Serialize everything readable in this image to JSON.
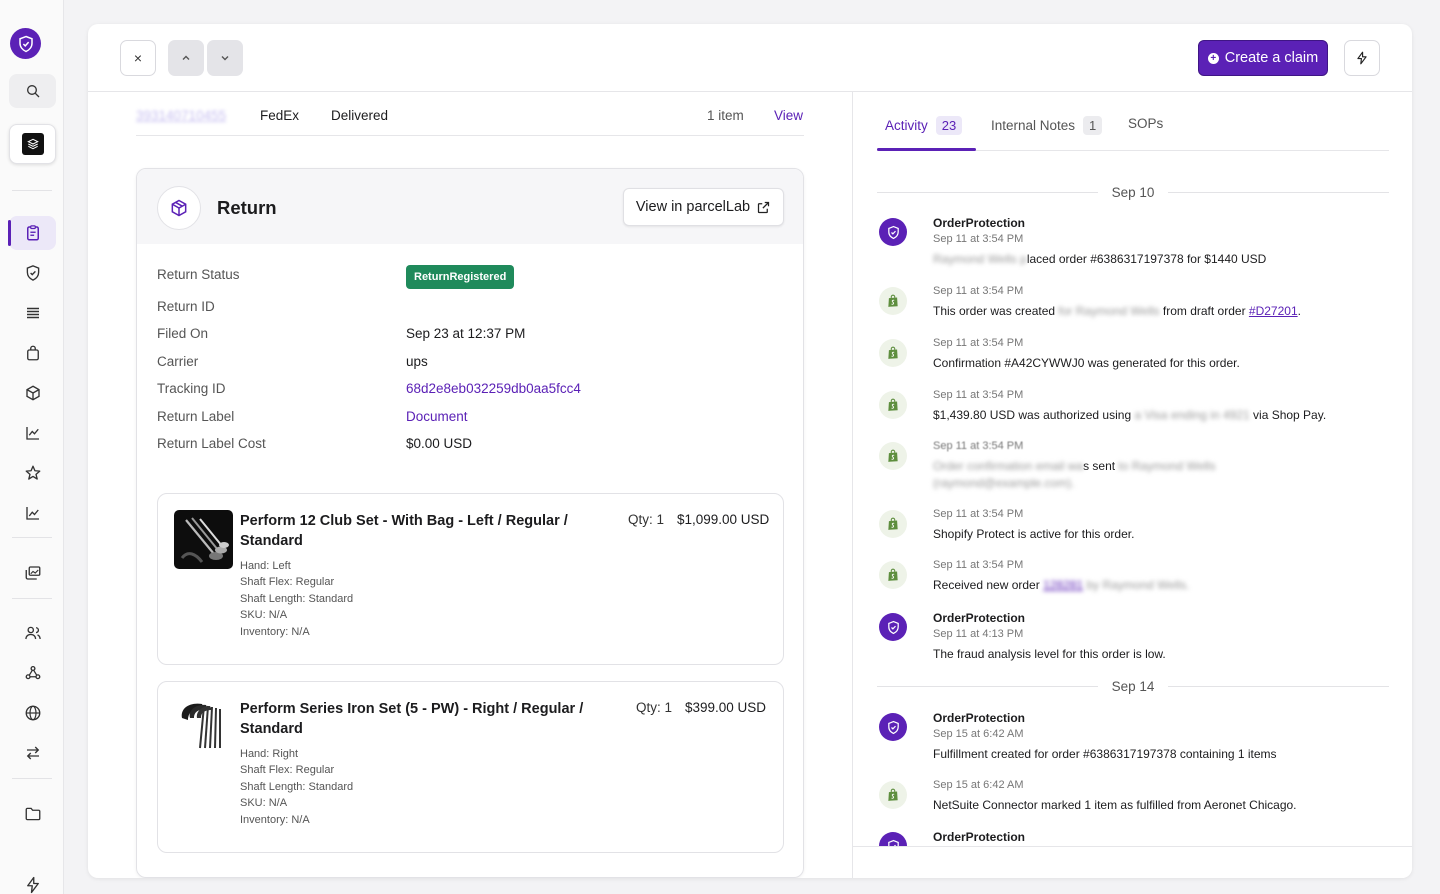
{
  "sidebar": {
    "icons": [
      "brand-shield-icon",
      "search-icon",
      "store-icon",
      "orders-icon",
      "shield-icon",
      "list-icon",
      "bag-icon",
      "package-icon",
      "chart-icon",
      "star-icon",
      "analytics-icon",
      "gallery-icon",
      "users-icon",
      "webhook-icon",
      "globe-icon",
      "transfer-icon",
      "folder-icon",
      "flash-icon"
    ],
    "active": "orders-icon"
  },
  "toolbar": {
    "close_label": "×",
    "up_label": "˄",
    "down_label": "˅",
    "create_claim_label": "Create a claim"
  },
  "shipment": {
    "tracking_blurred": "393140710455",
    "carrier": "FedEx",
    "status": "Delivered",
    "items": "1 item",
    "view": "View"
  },
  "return": {
    "title": "Return",
    "view_btn": "View in parcelLab",
    "fields": [
      {
        "label": "Return Status",
        "value": "ReturnRegistered"
      },
      {
        "label": "Return ID",
        "value": ""
      },
      {
        "label": "Filed On",
        "value": "Sep 23 at 12:37 PM"
      },
      {
        "label": "Carrier",
        "value": "ups"
      },
      {
        "label": "Tracking ID",
        "value": "68d2e8eb032259db0aa5fcc4"
      },
      {
        "label": "Return Label",
        "value": "Document"
      },
      {
        "label": "Return Label Cost",
        "value": "$0.00 USD"
      }
    ],
    "items": [
      {
        "title": "Perform 12 Club Set - With Bag - Left / Regular / Standard",
        "qty": "Qty: 1",
        "price": "$1,099.00 USD",
        "attrs": [
          "Hand: Left",
          "Shaft Flex: Regular",
          "Shaft Length: Standard",
          "SKU: N/A",
          "Inventory: N/A"
        ]
      },
      {
        "title": "Perform Series Iron Set (5 - PW) - Right / Regular / Standard",
        "qty": "Qty: 1",
        "price": "$399.00 USD",
        "attrs": [
          "Hand: Right",
          "Shaft Flex: Regular",
          "Shaft Length: Standard",
          "SKU: N/A",
          "Inventory: N/A"
        ]
      }
    ]
  },
  "tabs": [
    {
      "label": "Activity",
      "count": "23"
    },
    {
      "label": "Internal Notes",
      "count": "1"
    },
    {
      "label": "SOPs",
      "count": ""
    }
  ],
  "activity": {
    "dates": [
      "Sep 10",
      "Sep 14"
    ],
    "events": [
      {
        "author": "OrderProtection",
        "time": "Sep 11 at 3:54 PM",
        "blur_a": "Raymond Wells p",
        "text": "laced order #6386317197378 for $1440 USD"
      },
      {
        "time": "Sep 11 at 3:54 PM",
        "text_a": "This order was created",
        "blur_a": " for Raymond Wells ",
        "text_b": "from draft order ",
        "link": "#D27201",
        "text_c": "."
      },
      {
        "time": "Sep 11 at 3:54 PM",
        "text": "Confirmation #A42CYWWJ0 was generated for this order."
      },
      {
        "time": "Sep 11 at 3:54 PM",
        "text_a": "$1,439.80 USD was authorized using ",
        "blur_a": "a Visa ending in 4921",
        "text_b": " via Shop Pay."
      },
      {
        "time": "Sep 11 at 3:54 PM",
        "blur_a": "Order confirmation email wa",
        "text_a": "s sent ",
        "blur_b": "to Raymond Wells",
        "blur_c": "(raymond@example.com)."
      },
      {
        "time": "Sep 11 at 3:54 PM",
        "text": "Shopify Protect is active for this order."
      },
      {
        "time": "Sep 11 at 3:54 PM",
        "text_a": "Received new order ",
        "link_blur": "128281",
        "blur_a": " by Raymond Wells."
      },
      {
        "author": "OrderProtection",
        "time": "Sep 11 at 4:13 PM",
        "text": "The fraud analysis level for this order is low."
      },
      {
        "author": "OrderProtection",
        "time": "Sep 15 at 6:42 AM",
        "text": "Fulfillment created for order #6386317197378 containing 1 items"
      },
      {
        "time": "Sep 15 at 6:42 AM",
        "text": "NetSuite Connector marked 1 item as fulfilled from Aeronet Chicago."
      },
      {
        "author": "OrderProtection"
      }
    ]
  },
  "colors": {
    "accent": "#5b21b6",
    "success": "#1f8a5b",
    "shopify": "#5e8e3e"
  }
}
